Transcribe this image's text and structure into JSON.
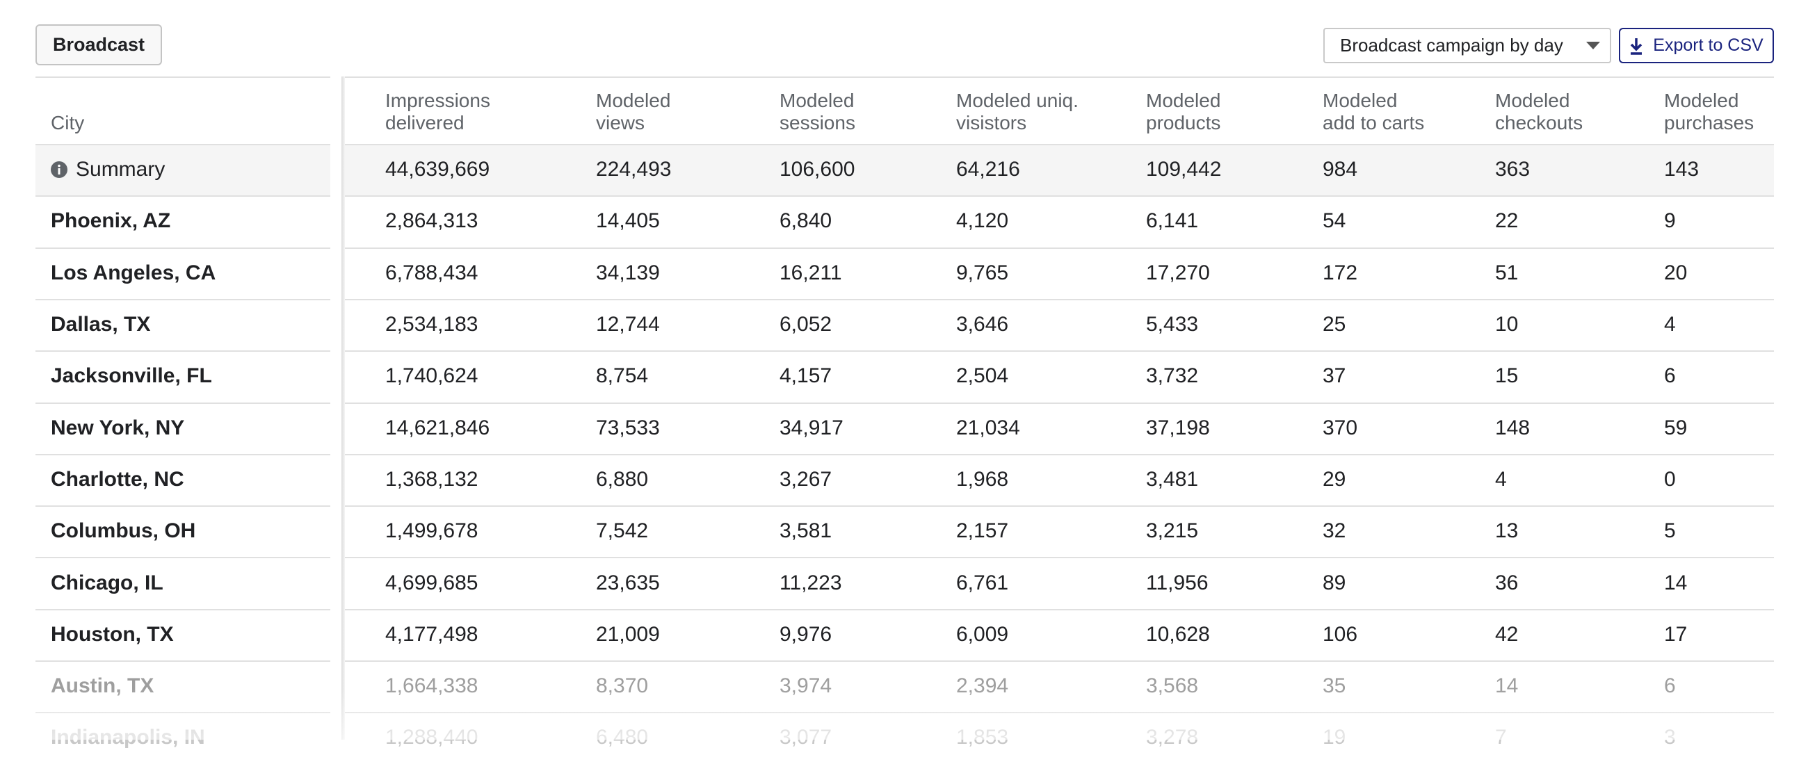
{
  "header": {
    "button": "Broadcast",
    "dropdown": "Broadcast campaign by day",
    "export": "Export to CSV"
  },
  "table": {
    "columns": [
      "City",
      "Impressions\ndelivered",
      "Modeled\nviews",
      "Modeled\nsessions",
      "Modeled uniq.\nvisistors",
      "Modeled\nproducts",
      "Modeled\nadd to carts",
      "Modeled\ncheckouts",
      "Modeled\npurchases"
    ],
    "summary": {
      "label": "Summary",
      "values": [
        "44,639,669",
        "224,493",
        "106,600",
        "64,216",
        "109,442",
        "984",
        "363",
        "143"
      ]
    },
    "rows": [
      [
        "Phoenix, AZ",
        "2,864,313",
        "14,405",
        "6,840",
        "4,120",
        "6,141",
        "54",
        "22",
        "9"
      ],
      [
        "Los Angeles, CA",
        "6,788,434",
        "34,139",
        "16,211",
        "9,765",
        "17,270",
        "172",
        "51",
        "20"
      ],
      [
        "Dallas, TX",
        "2,534,183",
        "12,744",
        "6,052",
        "3,646",
        "5,433",
        "25",
        "10",
        "4"
      ],
      [
        "Jacksonville, FL",
        "1,740,624",
        "8,754",
        "4,157",
        "2,504",
        "3,732",
        "37",
        "15",
        "6"
      ],
      [
        "New York, NY",
        "14,621,846",
        "73,533",
        "34,917",
        "21,034",
        "37,198",
        "370",
        "148",
        "59"
      ],
      [
        "Charlotte, NC",
        "1,368,132",
        "6,880",
        "3,267",
        "1,968",
        "3,481",
        "29",
        "4",
        "0"
      ],
      [
        "Columbus, OH",
        "1,499,678",
        "7,542",
        "3,581",
        "2,157",
        "3,215",
        "32",
        "13",
        "5"
      ],
      [
        "Chicago, IL",
        "4,699,685",
        "23,635",
        "11,223",
        "6,761",
        "11,956",
        "89",
        "36",
        "14"
      ],
      [
        "Houston, TX",
        "4,177,498",
        "21,009",
        "9,976",
        "6,009",
        "10,628",
        "106",
        "42",
        "17"
      ],
      [
        "Austin, TX",
        "1,664,338",
        "8,370",
        "3,974",
        "2,394",
        "3,568",
        "35",
        "14",
        "6"
      ],
      [
        "Indianapolis, IN",
        "1,288,440",
        "6,480",
        "3,077",
        "1,853",
        "3,278",
        "19",
        "7",
        "3"
      ]
    ]
  }
}
